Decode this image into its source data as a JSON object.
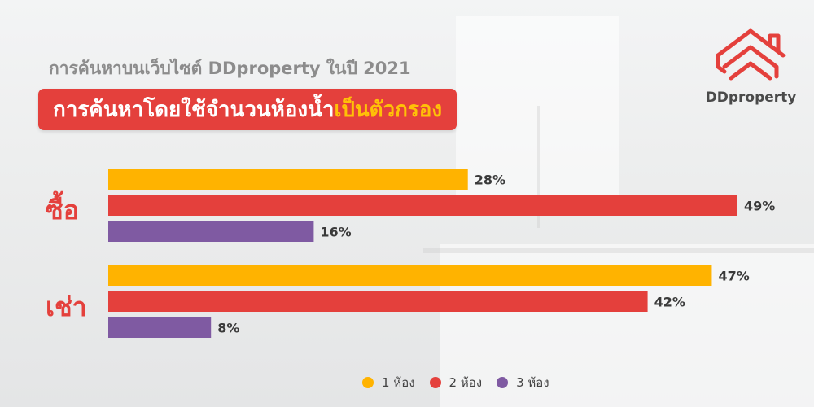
{
  "header": {
    "subtitle": "การค้นหาบนเว็บไซต์ DDproperty ในปี 2021",
    "title_main": "การค้นหาโดยใช้จำนวนห้องน้ำ",
    "title_accent": "เป็นตัวกรอง"
  },
  "brand": {
    "name": "DDproperty",
    "logo_icon": "ddproperty-house-logo-icon",
    "color_red": "#e4403c"
  },
  "chart_data": {
    "type": "bar",
    "orientation": "horizontal",
    "categories": [
      "ซื้อ",
      "เช่า"
    ],
    "series": [
      {
        "name": "1 ห้อง",
        "color": "#ffb300",
        "values": [
          28,
          47
        ],
        "labels": [
          "28%",
          "47%"
        ]
      },
      {
        "name": "2 ห้อง",
        "color": "#e4403c",
        "values": [
          49,
          42
        ],
        "labels": [
          "49%",
          "42%"
        ]
      },
      {
        "name": "3 ห้อง",
        "color": "#7f5aa2",
        "values": [
          16,
          8
        ],
        "labels": [
          "16%",
          "8%"
        ]
      }
    ],
    "unit": "%",
    "xlim": [
      0,
      49
    ],
    "grid": false,
    "legend_position": "bottom"
  }
}
